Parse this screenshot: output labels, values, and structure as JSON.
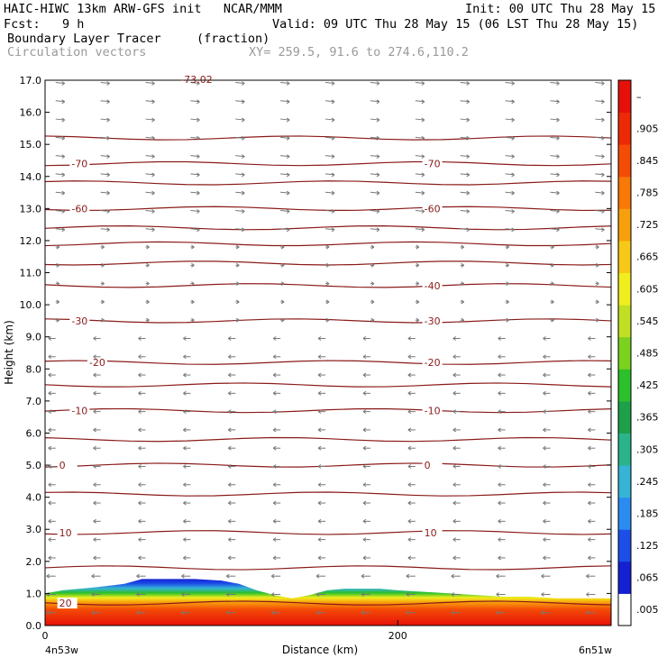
{
  "header": {
    "model": "HAIC-HIWC 13km ARW-GFS init   NCAR/MMM",
    "init": "Init: 00 UTC Thu 28 May 15",
    "fcst": "Fcst:   9 h",
    "valid": "Valid: 09 UTC Thu 28 May 15 (06 LST Thu 28 May 15)",
    "field": "Boundary Layer Tracer",
    "units": "(fraction)",
    "vectors": "Circulation vectors",
    "xy": "XY= 259.5, 91.6 to 274.6,110.2"
  },
  "colors": {
    "contour": "#8b1a1a",
    "vector": "#777777"
  },
  "chart_data": {
    "type": "heatmap",
    "xlabel": "Distance (km)",
    "ylabel": "Height (km)",
    "xlim": [
      0,
      321
    ],
    "ylim": [
      0,
      17
    ],
    "x_ticks": [
      {
        "value": 0,
        "label": "0"
      },
      {
        "value": 200,
        "label": "200"
      }
    ],
    "y_ticks": [
      {
        "value": 0,
        "label": "0.0"
      },
      {
        "value": 1,
        "label": "1.0"
      },
      {
        "value": 2,
        "label": "2.0"
      },
      {
        "value": 3,
        "label": "3.0"
      },
      {
        "value": 4,
        "label": "4.0"
      },
      {
        "value": 5,
        "label": "5.0"
      },
      {
        "value": 6,
        "label": "6.0"
      },
      {
        "value": 7,
        "label": "7.0"
      },
      {
        "value": 8,
        "label": "8.0"
      },
      {
        "value": 9,
        "label": "9.0"
      },
      {
        "value": 10,
        "label": "10.0"
      },
      {
        "value": 11,
        "label": "11.0"
      },
      {
        "value": 12,
        "label": "12.0"
      },
      {
        "value": 13,
        "label": "13.0"
      },
      {
        "value": 14,
        "label": "14.0"
      },
      {
        "value": 15,
        "label": "15.0"
      },
      {
        "value": 16,
        "label": "16.0"
      },
      {
        "value": 17,
        "label": "17.0"
      }
    ],
    "x_left_label": "4n53w",
    "x_right_label": "6n51w",
    "colorbar": {
      "labels": [
        ".005",
        ".065",
        ".125",
        ".185",
        ".245",
        ".305",
        ".365",
        ".425",
        ".485",
        ".545",
        ".605",
        ".665",
        ".725",
        ".785",
        ".845",
        ".905",
        "–"
      ],
      "colors": [
        "#ffffff",
        "#1420d2",
        "#1c4fe8",
        "#2a8cf0",
        "#36b4d6",
        "#2ab48c",
        "#1ea04a",
        "#2cc02a",
        "#7ad21e",
        "#c0e024",
        "#f0ee1e",
        "#f8c818",
        "#f8a00c",
        "#f87808",
        "#f44c06",
        "#ee2a06",
        "#e6100a"
      ]
    },
    "bl_tracer_top": {
      "x": [
        0,
        10,
        20,
        30,
        45,
        55,
        70,
        85,
        100,
        110,
        120,
        130,
        140,
        150,
        160,
        170,
        180,
        190,
        200,
        215,
        230,
        245,
        260,
        275,
        290,
        305,
        321
      ],
      "y": [
        1.0,
        1.1,
        1.15,
        1.2,
        1.3,
        1.45,
        1.45,
        1.45,
        1.4,
        1.3,
        1.1,
        0.95,
        0.85,
        0.95,
        1.1,
        1.15,
        1.15,
        1.15,
        1.1,
        1.05,
        1.0,
        0.95,
        0.9,
        0.9,
        0.85,
        0.85,
        0.85
      ]
    },
    "temperature_contours": [
      {
        "level": "20",
        "z": 0.7,
        "labels_at_x": [
          8
        ]
      },
      {
        "level": "10",
        "z": 2.9,
        "labels_at_x": [
          8,
          215
        ]
      },
      {
        "level": "0",
        "z": 5.0,
        "labels_at_x": [
          8,
          215
        ]
      },
      {
        "level": "-10",
        "z": 6.7,
        "labels_at_x": [
          15,
          215
        ]
      },
      {
        "level": "-20",
        "z": 8.2,
        "labels_at_x": [
          25,
          215
        ]
      },
      {
        "level": "-30",
        "z": 9.5,
        "labels_at_x": [
          15,
          215
        ]
      },
      {
        "level": "-40",
        "z": 10.6,
        "labels_at_x": [
          215
        ]
      },
      {
        "level": "-60",
        "z": 13.0,
        "labels_at_x": [
          15,
          215
        ]
      },
      {
        "level": "-70",
        "z": 14.4,
        "labels_at_x": [
          15,
          215
        ]
      }
    ],
    "other_contour_heights": [
      1.8,
      4.1,
      5.8,
      7.5,
      11.3,
      11.9,
      12.4,
      13.8,
      15.2
    ],
    "top_label": "-73.02"
  }
}
